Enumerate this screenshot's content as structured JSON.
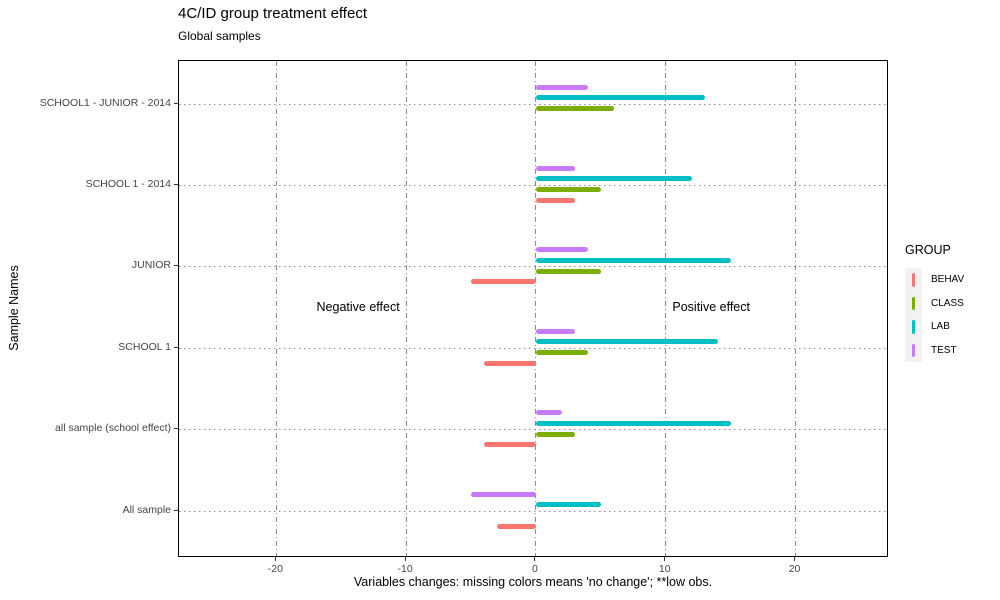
{
  "header": {
    "title": "4C/ID group treatment effect",
    "subtitle": "Global samples"
  },
  "axes": {
    "y_title": "Sample Names",
    "x_title": "Variables changes: missing colors means 'no change'; **low obs."
  },
  "legend": {
    "title": "GROUP",
    "items": [
      {
        "label": "BEHAV",
        "color": "#F8766D"
      },
      {
        "label": "CLASS",
        "color": "#7CAE00"
      },
      {
        "label": "LAB",
        "color": "#00BFC4"
      },
      {
        "label": "TEST",
        "color": "#C77CFF"
      }
    ]
  },
  "chart_data": {
    "type": "bar",
    "orientation": "horizontal",
    "title": "4C/ID group treatment effect",
    "subtitle": "Global samples",
    "xlabel": "Variables changes: missing colors means 'no change'; **low obs.",
    "ylabel": "Sample Names",
    "categories": [
      "SCHOOL1 - JUNIOR - 2014",
      "SCHOOL 1 - 2014",
      "JUNIOR",
      "SCHOOL 1",
      "all sample (school effect)",
      "All sample"
    ],
    "series": [
      {
        "name": "TEST",
        "color": "#C77CFF",
        "values": [
          4,
          3,
          4,
          3,
          2,
          -5
        ]
      },
      {
        "name": "LAB",
        "color": "#00BFC4",
        "values": [
          13,
          12,
          15,
          14,
          15,
          5
        ]
      },
      {
        "name": "CLASS",
        "color": "#7CAE00",
        "values": [
          6,
          5,
          5,
          4,
          3,
          null
        ]
      },
      {
        "name": "BEHAV",
        "color": "#F8766D",
        "values": [
          null,
          3,
          -5,
          -4,
          -4,
          -3
        ]
      }
    ],
    "x_ticks": [
      -20,
      -10,
      0,
      10,
      20
    ],
    "xlim": [
      -27.5,
      27.2
    ],
    "grid": {
      "vertical": "dash-dot at x ticks",
      "horizontal": "dotted at each category"
    },
    "legend_position": "right",
    "annotations": [
      {
        "text": "Negative effect",
        "x": -13.7,
        "row": 2.5
      },
      {
        "text": "Positive effect",
        "x": 13.5,
        "row": 2.5
      }
    ]
  }
}
